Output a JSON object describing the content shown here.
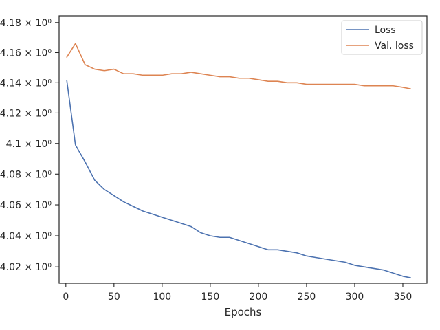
{
  "chart_data": {
    "type": "line",
    "title": "",
    "xlabel": "Epochs",
    "ylabel": "",
    "xlim": [
      -7,
      375
    ],
    "ylim": [
      4.0095,
      4.1845
    ],
    "yscale": "log",
    "grid": false,
    "legend_position": "top-right",
    "x_ticks": [
      0,
      50,
      100,
      150,
      200,
      250,
      300,
      350
    ],
    "x_tick_labels": [
      "0",
      "50",
      "100",
      "150",
      "200",
      "250",
      "300",
      "350"
    ],
    "y_ticks": [
      4.02,
      4.04,
      4.06,
      4.08,
      4.1,
      4.12,
      4.14,
      4.16,
      4.18
    ],
    "y_tick_labels": [
      "4.02 × 10⁰",
      "4.04 × 10⁰",
      "4.06 × 10⁰",
      "4.08 × 10⁰",
      "4.1 × 10⁰",
      "4.12 × 10⁰",
      "4.14 × 10⁰",
      "4.16 × 10⁰",
      "4.18 × 10⁰"
    ],
    "x": [
      1,
      10,
      20,
      30,
      40,
      50,
      60,
      70,
      80,
      90,
      100,
      110,
      120,
      130,
      140,
      150,
      160,
      170,
      180,
      190,
      200,
      210,
      220,
      230,
      240,
      250,
      260,
      270,
      280,
      290,
      300,
      310,
      320,
      330,
      340,
      350,
      358
    ],
    "series": [
      {
        "name": "Loss",
        "color": "#4c72b0",
        "values": [
          4.1415,
          4.099,
          4.088,
          4.076,
          4.07,
          4.066,
          4.062,
          4.059,
          4.056,
          4.054,
          4.052,
          4.05,
          4.048,
          4.046,
          4.042,
          4.04,
          4.039,
          4.039,
          4.037,
          4.035,
          4.033,
          4.031,
          4.031,
          4.03,
          4.029,
          4.027,
          4.026,
          4.025,
          4.024,
          4.023,
          4.021,
          4.02,
          4.019,
          4.018,
          4.016,
          4.014,
          4.013
        ]
      },
      {
        "name": "Val. loss",
        "color": "#dd8452",
        "values": [
          4.157,
          4.166,
          4.152,
          4.149,
          4.148,
          4.149,
          4.146,
          4.146,
          4.145,
          4.145,
          4.145,
          4.146,
          4.146,
          4.147,
          4.146,
          4.145,
          4.144,
          4.144,
          4.143,
          4.143,
          4.142,
          4.141,
          4.141,
          4.14,
          4.14,
          4.139,
          4.139,
          4.139,
          4.139,
          4.139,
          4.139,
          4.138,
          4.138,
          4.138,
          4.138,
          4.137,
          4.136
        ]
      }
    ]
  }
}
